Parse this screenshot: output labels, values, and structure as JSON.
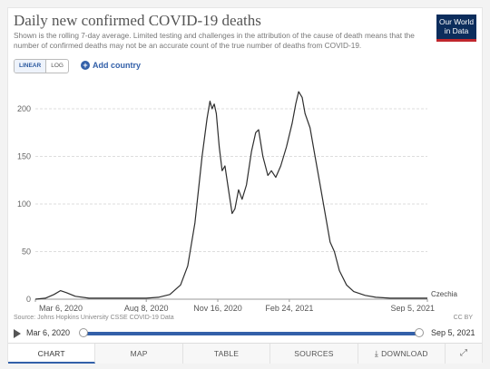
{
  "header": {
    "title": "Daily new confirmed COVID-19 deaths",
    "subtitle": "Shown is the rolling 7-day average. Limited testing and challenges in the attribution of the cause of death means that the number of confirmed deaths may not be an accurate count of the true number of deaths from COVID-19.",
    "logo_line1": "Our World",
    "logo_line2": "in Data"
  },
  "controls": {
    "linear_label": "LINEAR",
    "log_label": "LOG",
    "add_country_label": "Add country",
    "active_scale": "linear"
  },
  "chart_data": {
    "type": "line",
    "x_tick_labels": [
      "Mar 6, 2020",
      "Aug 8, 2020",
      "Nov 16, 2020",
      "Feb 24, 2021",
      "Sep 5, 2021"
    ],
    "x_tick_dates": [
      "2020-03-06",
      "2020-08-08",
      "2020-11-16",
      "2021-02-24",
      "2021-09-05"
    ],
    "y_ticks": [
      0,
      50,
      100,
      150,
      200
    ],
    "ylim": [
      0,
      220
    ],
    "grid": true,
    "series": [
      {
        "name": "Czechia",
        "color": "#2e2e2e",
        "points": [
          [
            "2020-03-06",
            0
          ],
          [
            "2020-03-20",
            1
          ],
          [
            "2020-04-01",
            5
          ],
          [
            "2020-04-10",
            9
          ],
          [
            "2020-04-18",
            7
          ],
          [
            "2020-05-01",
            3
          ],
          [
            "2020-05-20",
            1
          ],
          [
            "2020-06-15",
            1
          ],
          [
            "2020-07-15",
            1
          ],
          [
            "2020-08-08",
            1
          ],
          [
            "2020-08-25",
            2
          ],
          [
            "2020-09-10",
            5
          ],
          [
            "2020-09-25",
            15
          ],
          [
            "2020-10-05",
            35
          ],
          [
            "2020-10-15",
            80
          ],
          [
            "2020-10-25",
            150
          ],
          [
            "2020-11-01",
            190
          ],
          [
            "2020-11-05",
            208
          ],
          [
            "2020-11-08",
            200
          ],
          [
            "2020-11-11",
            205
          ],
          [
            "2020-11-14",
            195
          ],
          [
            "2020-11-18",
            160
          ],
          [
            "2020-11-22",
            135
          ],
          [
            "2020-11-26",
            140
          ],
          [
            "2020-12-02",
            110
          ],
          [
            "2020-12-06",
            90
          ],
          [
            "2020-12-10",
            95
          ],
          [
            "2020-12-15",
            115
          ],
          [
            "2020-12-20",
            105
          ],
          [
            "2020-12-26",
            120
          ],
          [
            "2021-01-02",
            155
          ],
          [
            "2021-01-08",
            175
          ],
          [
            "2021-01-12",
            178
          ],
          [
            "2021-01-18",
            150
          ],
          [
            "2021-01-25",
            130
          ],
          [
            "2021-01-30",
            135
          ],
          [
            "2021-02-05",
            128
          ],
          [
            "2021-02-12",
            140
          ],
          [
            "2021-02-20",
            160
          ],
          [
            "2021-02-28",
            185
          ],
          [
            "2021-03-05",
            205
          ],
          [
            "2021-03-09",
            218
          ],
          [
            "2021-03-14",
            212
          ],
          [
            "2021-03-18",
            195
          ],
          [
            "2021-03-25",
            180
          ],
          [
            "2021-04-01",
            150
          ],
          [
            "2021-04-08",
            120
          ],
          [
            "2021-04-15",
            90
          ],
          [
            "2021-04-22",
            60
          ],
          [
            "2021-04-28",
            50
          ],
          [
            "2021-05-05",
            30
          ],
          [
            "2021-05-15",
            15
          ],
          [
            "2021-05-25",
            8
          ],
          [
            "2021-06-10",
            4
          ],
          [
            "2021-06-25",
            2
          ],
          [
            "2021-07-15",
            1
          ],
          [
            "2021-08-10",
            1
          ],
          [
            "2021-09-05",
            1
          ]
        ]
      }
    ]
  },
  "footer": {
    "source": "Source: Johns Hopkins University CSSE COVID-19 Data",
    "license": "CC BY",
    "timeline_start": "Mar 6, 2020",
    "timeline_end": "Sep 5, 2021"
  },
  "tabs": [
    {
      "label": "CHART",
      "active": true
    },
    {
      "label": "MAP",
      "active": false
    },
    {
      "label": "TABLE",
      "active": false
    },
    {
      "label": "SOURCES",
      "active": false
    },
    {
      "label": "DOWNLOAD",
      "active": false
    }
  ],
  "icons": {
    "add": "plus-circle-icon",
    "play": "play-icon",
    "download": "download-icon",
    "fullscreen": "fullscreen-icon"
  }
}
